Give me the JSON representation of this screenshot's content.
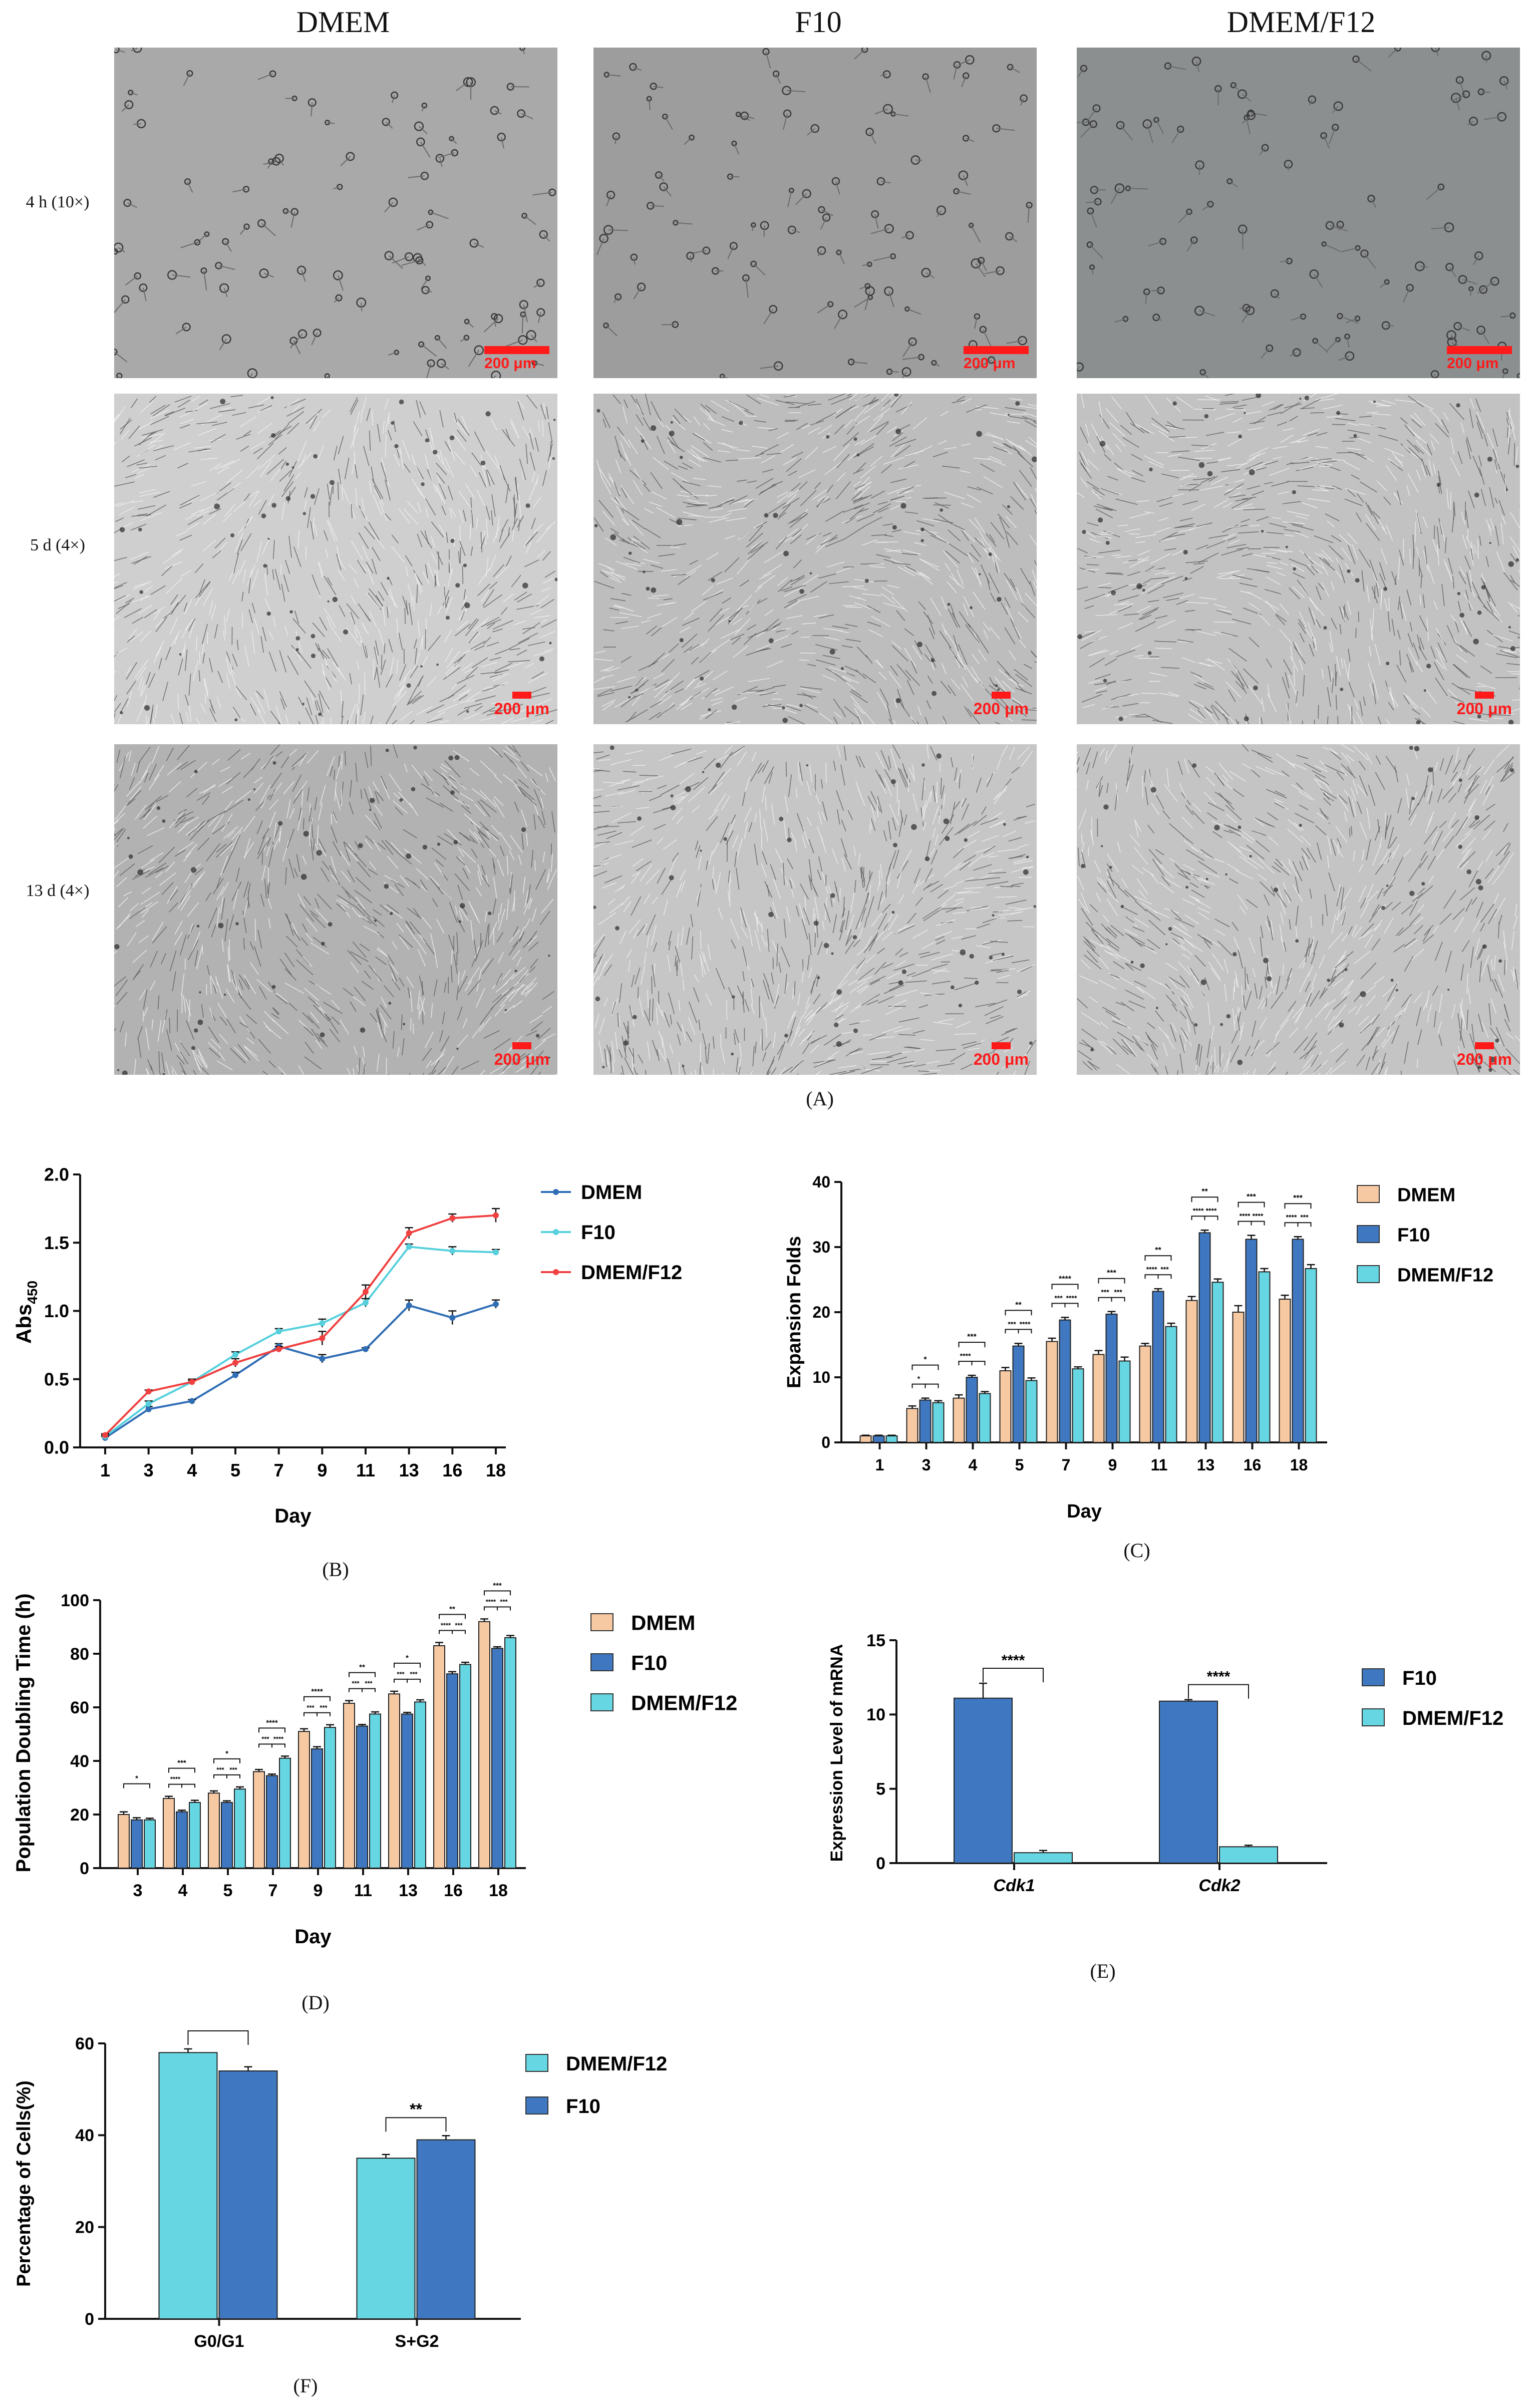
{
  "panel_a": {
    "columns": [
      "DMEM",
      "F10",
      "DMEM/F12"
    ],
    "rows": [
      "4 h (10×)",
      "5 d (4×)",
      "13 d (4×)"
    ],
    "scale_bar": "200 μm",
    "label": "(A)"
  },
  "labels": {
    "b": "(B)",
    "c": "(C)",
    "d": "(D)",
    "e": "(E)",
    "f": "(F)"
  },
  "colors": {
    "dmem_bar": "#f7c9a3",
    "f10_bar": "#3f78c0",
    "f12_bar": "#66d6e2",
    "dmem_line": "#2f6db5",
    "f10_line": "#55d0dc",
    "f12_line": "#f04040",
    "scale": "#ff1a1a"
  },
  "chart_data": [
    {
      "id": "B",
      "type": "line",
      "x": [
        "1",
        "3",
        "4",
        "5",
        "7",
        "9",
        "11",
        "13",
        "16",
        "18"
      ],
      "xlabel": "Day",
      "ylabel": "Abs",
      "ylabel_sub": "450",
      "ylim": [
        0,
        2.0
      ],
      "yticks": [
        "0.0",
        "0.5",
        "1.0",
        "1.5",
        "2.0"
      ],
      "legend_placement": "right",
      "series": [
        {
          "name": "DMEM",
          "values": [
            0.07,
            0.28,
            0.34,
            0.53,
            0.74,
            0.65,
            0.72,
            1.04,
            0.95,
            1.05
          ],
          "err": [
            0.01,
            0.02,
            0.01,
            0.02,
            0.02,
            0.03,
            0.01,
            0.04,
            0.05,
            0.03
          ]
        },
        {
          "name": "F10",
          "values": [
            0.08,
            0.32,
            0.48,
            0.68,
            0.85,
            0.91,
            1.06,
            1.47,
            1.44,
            1.43
          ],
          "err": [
            0.01,
            0.02,
            0.01,
            0.02,
            0.02,
            0.03,
            0.03,
            0.02,
            0.03,
            0.02
          ]
        },
        {
          "name": "DMEM/F12",
          "values": [
            0.09,
            0.41,
            0.48,
            0.62,
            0.72,
            0.8,
            1.14,
            1.57,
            1.68,
            1.7
          ],
          "err": [
            0.01,
            0.01,
            0.02,
            0.03,
            0.02,
            0.05,
            0.05,
            0.04,
            0.03,
            0.05
          ]
        }
      ]
    },
    {
      "id": "C",
      "type": "bar",
      "categories": [
        "1",
        "3",
        "4",
        "5",
        "7",
        "9",
        "11",
        "13",
        "16",
        "18"
      ],
      "xlabel": "Day",
      "ylabel": "Expansion Folds",
      "ylim": [
        0,
        40
      ],
      "yticks": [
        "0",
        "10",
        "20",
        "30",
        "40"
      ],
      "legend_placement": "right",
      "series": [
        {
          "name": "DMEM",
          "values": [
            1,
            5.2,
            6.8,
            11,
            15.5,
            13.5,
            14.8,
            21.8,
            20,
            22
          ],
          "err": [
            0.1,
            0.4,
            0.5,
            0.5,
            0.5,
            0.6,
            0.4,
            0.6,
            1.0,
            0.6
          ]
        },
        {
          "name": "F10",
          "values": [
            1,
            6.5,
            10,
            14.8,
            18.8,
            19.7,
            23.2,
            32.2,
            31.2,
            31.2
          ],
          "err": [
            0.1,
            0.3,
            0.3,
            0.4,
            0.4,
            0.4,
            0.4,
            0.4,
            0.6,
            0.4
          ]
        },
        {
          "name": "DMEM/F12",
          "values": [
            1,
            6.1,
            7.5,
            9.5,
            11.3,
            12.5,
            17.8,
            24.6,
            26.2,
            26.7
          ],
          "err": [
            0.1,
            0.3,
            0.3,
            0.4,
            0.3,
            0.6,
            0.5,
            0.5,
            0.5,
            0.6
          ]
        }
      ],
      "sig": [
        {
          "i": 1,
          "marks": [
            "*",
            "*"
          ]
        },
        {
          "i": 2,
          "marks": [
            "***",
            "****"
          ]
        },
        {
          "i": 3,
          "marks": [
            "**",
            "*** ****"
          ]
        },
        {
          "i": 4,
          "marks": [
            "****",
            "*** ****"
          ]
        },
        {
          "i": 5,
          "marks": [
            "***",
            "*** ***"
          ]
        },
        {
          "i": 6,
          "marks": [
            "**",
            "**** ***"
          ]
        },
        {
          "i": 7,
          "marks": [
            "**",
            "**** ****"
          ]
        },
        {
          "i": 8,
          "marks": [
            "***",
            "**** ****"
          ]
        },
        {
          "i": 9,
          "marks": [
            "***",
            "**** ***"
          ]
        }
      ]
    },
    {
      "id": "D",
      "type": "bar",
      "categories": [
        "3",
        "4",
        "5",
        "7",
        "9",
        "11",
        "13",
        "16",
        "18"
      ],
      "xlabel": "Day",
      "ylabel": "Population Doubling Time (h)",
      "ylim": [
        0,
        100
      ],
      "yticks": [
        "0",
        "20",
        "40",
        "60",
        "80",
        "100"
      ],
      "legend_placement": "right",
      "series": [
        {
          "name": "DMEM",
          "values": [
            20,
            26,
            28,
            36,
            51,
            61.5,
            65,
            83,
            92
          ],
          "err": [
            1,
            0.8,
            0.8,
            0.8,
            1,
            1,
            1,
            1.2,
            1
          ]
        },
        {
          "name": "F10",
          "values": [
            18,
            21,
            24.5,
            34.5,
            44.5,
            53,
            57.5,
            72.5,
            82
          ],
          "err": [
            0.8,
            0.6,
            0.6,
            0.6,
            0.8,
            0.6,
            0.6,
            0.8,
            0.6
          ]
        },
        {
          "name": "DMEM/F12",
          "values": [
            18,
            24.5,
            29.5,
            41,
            52.5,
            57.5,
            62,
            76,
            86
          ],
          "err": [
            0.6,
            0.8,
            0.8,
            0.8,
            1,
            0.8,
            0.8,
            0.8,
            0.8
          ]
        }
      ],
      "sig": [
        {
          "i": 0,
          "marks": [
            "*",
            ""
          ]
        },
        {
          "i": 1,
          "marks": [
            "***",
            "****"
          ]
        },
        {
          "i": 2,
          "marks": [
            "*",
            "*** ***"
          ]
        },
        {
          "i": 3,
          "marks": [
            "****",
            "*** ****"
          ]
        },
        {
          "i": 4,
          "marks": [
            "****",
            "*** ***"
          ]
        },
        {
          "i": 5,
          "marks": [
            "**",
            "*** ***"
          ]
        },
        {
          "i": 6,
          "marks": [
            "*",
            "*** ***"
          ]
        },
        {
          "i": 7,
          "marks": [
            "**",
            "**** ***"
          ]
        },
        {
          "i": 8,
          "marks": [
            "***",
            "**** ***"
          ]
        }
      ]
    },
    {
      "id": "E",
      "type": "bar",
      "categories": [
        "Cdk1",
        "Cdk2"
      ],
      "ylabel": "Expression Level of mRNA",
      "ylim": [
        0,
        15
      ],
      "yticks": [
        "0",
        "5",
        "10",
        "15"
      ],
      "legend_placement": "right",
      "series": [
        {
          "name": "F10",
          "values": [
            11.1,
            10.9
          ],
          "err": [
            1.0,
            0.1
          ]
        },
        {
          "name": "DMEM/F12",
          "values": [
            0.7,
            1.1
          ],
          "err": [
            0.15,
            0.1
          ]
        }
      ],
      "sig": [
        "****",
        "****"
      ]
    },
    {
      "id": "F",
      "type": "bar",
      "categories": [
        "G0/G1",
        "S+G2"
      ],
      "ylabel": "Percentage of Cells(%)",
      "ylim": [
        0,
        60
      ],
      "yticks": [
        "0",
        "20",
        "40",
        "60"
      ],
      "legend_placement": "right",
      "series": [
        {
          "name": "DMEM/F12",
          "values": [
            58,
            35
          ],
          "err": [
            0.8,
            0.8
          ]
        },
        {
          "name": "F10",
          "values": [
            54,
            39
          ],
          "err": [
            0.9,
            0.9
          ]
        }
      ],
      "sig": [
        "**",
        "**"
      ]
    }
  ]
}
